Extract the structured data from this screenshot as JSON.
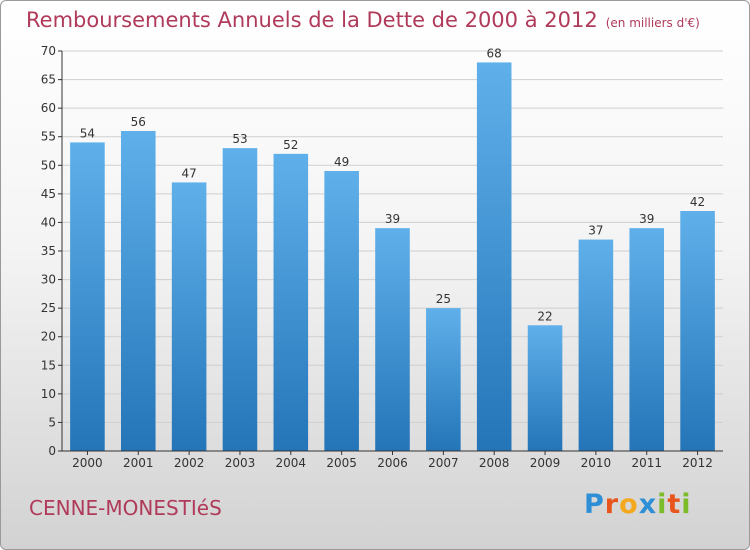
{
  "chart_data": {
    "type": "bar",
    "title": "Remboursements Annuels de la Dette de 2000 à 2012",
    "unit_label": "(en milliers d'€)",
    "categories": [
      "2000",
      "2001",
      "2002",
      "2003",
      "2004",
      "2005",
      "2006",
      "2007",
      "2008",
      "2009",
      "2010",
      "2011",
      "2012"
    ],
    "values": [
      54,
      56,
      47,
      53,
      52,
      49,
      39,
      25,
      68,
      22,
      37,
      39,
      42
    ],
    "ylim": [
      0,
      70
    ],
    "yticks": [
      0,
      5,
      10,
      15,
      20,
      25,
      30,
      35,
      40,
      45,
      50,
      55,
      60,
      65,
      70
    ],
    "grid": true,
    "legend": "none",
    "colors": {
      "bar_top": "#5fb0ea",
      "bar_bottom": "#2475b8",
      "text": "#b03a5a",
      "grid": "#cfcfcf",
      "axis": "#333333"
    }
  },
  "footer": {
    "city": "CENNE-MONESTIéS",
    "brand": "Proxiti",
    "brand_colors": [
      "#2f8fd6",
      "#e8541b",
      "#f4a81d",
      "#2f8fd6",
      "#7cbc2a",
      "#e8541b",
      "#7cbc2a"
    ]
  }
}
